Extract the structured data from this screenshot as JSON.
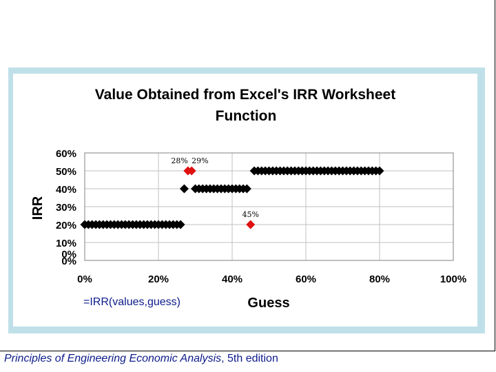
{
  "footer": {
    "book_title": "Principles of Engineering Economic Analysis",
    "edition": ", 5th edition"
  },
  "formula": {
    "prefix": "=",
    "func": "IRR",
    "open": "(",
    "arg1": "values",
    "sep": ",",
    "arg2": "guess",
    "close": ")"
  },
  "chart_data": {
    "type": "scatter",
    "title_line1": "Value Obtained from Excel's IRR Worksheet",
    "title_line2": "Function",
    "xlabel": "Guess",
    "ylabel": "IRR",
    "xlim": [
      0,
      1.0
    ],
    "ylim": [
      0,
      0.6
    ],
    "x_ticks": [
      0,
      0.2,
      0.4,
      0.6,
      0.8,
      1.0
    ],
    "x_tick_labels": [
      "0%",
      "20%",
      "40%",
      "60%",
      "80%",
      "100%"
    ],
    "y_ticks": [
      0,
      0.1,
      0.2,
      0.3,
      0.4,
      0.5,
      0.6
    ],
    "y_tick_labels": [
      "0%",
      "10%",
      "20%",
      "30%",
      "40%",
      "50%",
      "60%"
    ],
    "extra_y_tick_label": "0%",
    "grid": true,
    "marker": "diamond",
    "series": [
      {
        "color": "#000000",
        "points": [
          [
            0.0,
            0.2
          ],
          [
            0.01,
            0.2
          ],
          [
            0.02,
            0.2
          ],
          [
            0.03,
            0.2
          ],
          [
            0.04,
            0.2
          ],
          [
            0.05,
            0.2
          ],
          [
            0.06,
            0.2
          ],
          [
            0.07,
            0.2
          ],
          [
            0.08,
            0.2
          ],
          [
            0.09,
            0.2
          ],
          [
            0.1,
            0.2
          ],
          [
            0.11,
            0.2
          ],
          [
            0.12,
            0.2
          ],
          [
            0.13,
            0.2
          ],
          [
            0.14,
            0.2
          ],
          [
            0.15,
            0.2
          ],
          [
            0.16,
            0.2
          ],
          [
            0.17,
            0.2
          ],
          [
            0.18,
            0.2
          ],
          [
            0.19,
            0.2
          ],
          [
            0.2,
            0.2
          ],
          [
            0.21,
            0.2
          ],
          [
            0.22,
            0.2
          ],
          [
            0.23,
            0.2
          ],
          [
            0.24,
            0.2
          ],
          [
            0.25,
            0.2
          ],
          [
            0.26,
            0.2
          ],
          [
            0.27,
            0.4
          ],
          [
            0.3,
            0.4
          ],
          [
            0.31,
            0.4
          ],
          [
            0.32,
            0.4
          ],
          [
            0.33,
            0.4
          ],
          [
            0.34,
            0.4
          ],
          [
            0.35,
            0.4
          ],
          [
            0.36,
            0.4
          ],
          [
            0.37,
            0.4
          ],
          [
            0.38,
            0.4
          ],
          [
            0.39,
            0.4
          ],
          [
            0.4,
            0.4
          ],
          [
            0.41,
            0.4
          ],
          [
            0.42,
            0.4
          ],
          [
            0.43,
            0.4
          ],
          [
            0.44,
            0.4
          ],
          [
            0.46,
            0.5
          ],
          [
            0.47,
            0.5
          ],
          [
            0.48,
            0.5
          ],
          [
            0.49,
            0.5
          ],
          [
            0.5,
            0.5
          ],
          [
            0.51,
            0.5
          ],
          [
            0.52,
            0.5
          ],
          [
            0.53,
            0.5
          ],
          [
            0.54,
            0.5
          ],
          [
            0.55,
            0.5
          ],
          [
            0.56,
            0.5
          ],
          [
            0.57,
            0.5
          ],
          [
            0.58,
            0.5
          ],
          [
            0.59,
            0.5
          ],
          [
            0.6,
            0.5
          ],
          [
            0.61,
            0.5
          ],
          [
            0.62,
            0.5
          ],
          [
            0.63,
            0.5
          ],
          [
            0.64,
            0.5
          ],
          [
            0.65,
            0.5
          ],
          [
            0.66,
            0.5
          ],
          [
            0.67,
            0.5
          ],
          [
            0.68,
            0.5
          ],
          [
            0.69,
            0.5
          ],
          [
            0.7,
            0.5
          ],
          [
            0.71,
            0.5
          ],
          [
            0.72,
            0.5
          ],
          [
            0.73,
            0.5
          ],
          [
            0.74,
            0.5
          ],
          [
            0.75,
            0.5
          ],
          [
            0.76,
            0.5
          ],
          [
            0.77,
            0.5
          ],
          [
            0.78,
            0.5
          ],
          [
            0.79,
            0.5
          ],
          [
            0.8,
            0.5
          ]
        ]
      },
      {
        "color": "#e01010",
        "points": [
          [
            0.28,
            0.5
          ],
          [
            0.29,
            0.5
          ],
          [
            0.45,
            0.2
          ]
        ]
      }
    ],
    "annotations": [
      {
        "text": "28%",
        "x": 0.28,
        "y": 0.5,
        "anchor": "end"
      },
      {
        "text": "29%",
        "x": 0.29,
        "y": 0.5,
        "anchor": "start"
      },
      {
        "text": "45%",
        "x": 0.45,
        "y": 0.2,
        "anchor": "middle"
      }
    ]
  }
}
